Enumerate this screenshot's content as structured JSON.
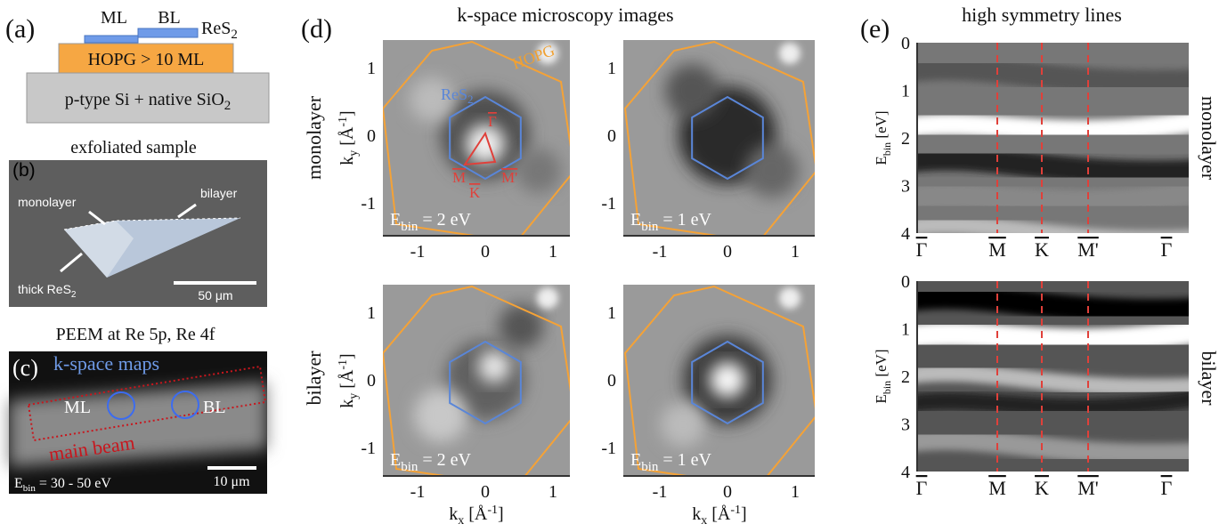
{
  "panel_a": {
    "label": "(a)",
    "ml": "ML",
    "bl": "BL",
    "res2": {
      "base": "ReS",
      "sub": "2"
    },
    "hopg": "HOPG > 10 ML",
    "substrate": {
      "base": "p-type Si + native SiO",
      "sub": "2"
    }
  },
  "panel_b": {
    "title": "exfoliated sample",
    "label": "(b)",
    "monolayer": "monolayer",
    "bilayer": "bilayer",
    "thick": {
      "base": "thick ReS",
      "sub": "2"
    },
    "scale": "50 μm"
  },
  "panel_c": {
    "title": "PEEM at Re 5p, Re 4f",
    "label": "(c)",
    "maps": "k-space maps",
    "ml": "ML",
    "bl": "BL",
    "beam": "main beam",
    "energy": {
      "base": "E",
      "sub": "bin",
      "tail": " = 30 - 50 eV"
    },
    "scale": "10 μm"
  },
  "panel_d": {
    "label": "(d)",
    "title": "k-space microscopy images",
    "rows": [
      "monolayer",
      "bilayer"
    ],
    "hopg": "HOPG",
    "res2": {
      "base": "ReS",
      "sub": "2"
    },
    "points": {
      "gamma": "Γ",
      "m": "M",
      "k": "K",
      "mp": "M'"
    },
    "ky_label": {
      "base": "k",
      "sub": "y",
      "tail": " [Å",
      "sup": "-1",
      "end": "]"
    },
    "kx_label": {
      "base": "k",
      "sub": "x",
      "tail": " [Å",
      "sup": "-1",
      "end": "]"
    },
    "ticks": [
      -1,
      0,
      1
    ],
    "energies": [
      {
        "base": "E",
        "sub": "bin",
        "tail": " = 2 eV"
      },
      {
        "base": "E",
        "sub": "bin",
        "tail": " = 1 eV"
      },
      {
        "base": "E",
        "sub": "bin",
        "tail": " = 2 eV"
      },
      {
        "base": "E",
        "sub": "bin",
        "tail": " = 1 eV"
      }
    ]
  },
  "panel_e": {
    "label": "(e)",
    "title": "high symmetry lines",
    "rows": [
      "monolayer",
      "bilayer"
    ],
    "y_label": {
      "base": "E",
      "sub": "bin",
      "tail": " [eV]"
    },
    "yticks": [
      0,
      1,
      2,
      3,
      4
    ],
    "points": [
      "Γ",
      "M",
      "K",
      "M'",
      "Γ"
    ]
  }
}
